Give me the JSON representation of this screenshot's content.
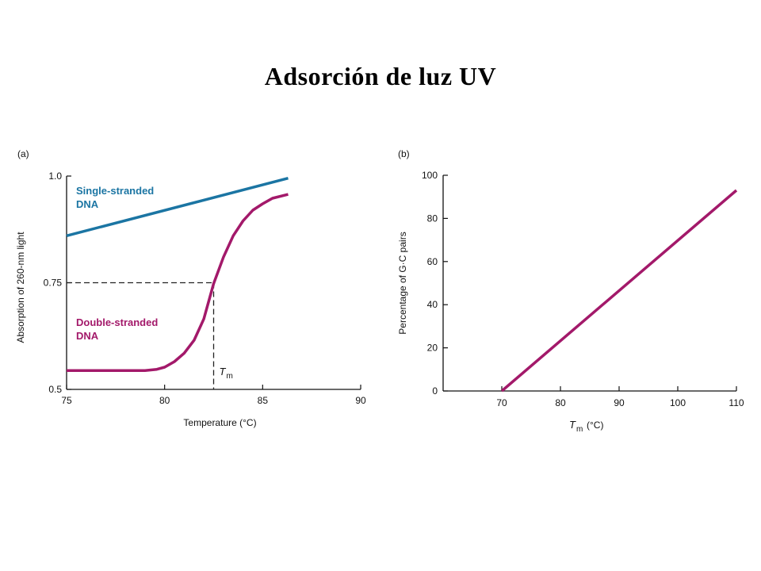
{
  "page": {
    "title": "Adsorción de luz UV"
  },
  "colors": {
    "single_stranded": "#1b75a3",
    "double_stranded": "#a3196a",
    "axis": "#111111"
  },
  "chart_data": [
    {
      "type": "line",
      "panel_label": "(a)",
      "xlabel": "Temperature (°C)",
      "ylabel": "Absorption of 260-nm light",
      "xlim": [
        75,
        90
      ],
      "ylim": [
        0.5,
        1.0
      ],
      "x_ticks": [
        75,
        80,
        85,
        90
      ],
      "y_ticks": [
        0.5,
        0.75,
        1.0
      ],
      "x_tick_labels": [
        "75",
        "80",
        "85",
        "90"
      ],
      "y_tick_labels": [
        "0.5",
        "0.75",
        "1.0"
      ],
      "grid": false,
      "series": [
        {
          "name_lines": [
            "Single-stranded",
            "DNA"
          ],
          "color_key": "single_stranded",
          "points": [
            [
              75,
              0.86
            ],
            [
              86.3,
              0.995
            ]
          ]
        },
        {
          "name_lines": [
            "Double-stranded",
            "DNA"
          ],
          "color_key": "double_stranded",
          "points": [
            [
              75,
              0.544
            ],
            [
              79.0,
              0.544
            ],
            [
              79.6,
              0.547
            ],
            [
              80.0,
              0.552
            ],
            [
              80.5,
              0.565
            ],
            [
              81.0,
              0.585
            ],
            [
              81.5,
              0.615
            ],
            [
              82.0,
              0.665
            ],
            [
              82.5,
              0.748
            ],
            [
              83.0,
              0.81
            ],
            [
              83.5,
              0.86
            ],
            [
              84.0,
              0.895
            ],
            [
              84.5,
              0.92
            ],
            [
              85.0,
              0.935
            ],
            [
              85.5,
              0.948
            ],
            [
              86.3,
              0.957
            ]
          ]
        }
      ],
      "annotations": {
        "tm_x": 82.5,
        "tm_y": 0.75,
        "tm_symbol": "T",
        "tm_subscript": "m"
      }
    },
    {
      "type": "line",
      "panel_label": "(b)",
      "xlabel_symbol": "T",
      "xlabel_subscript": "m",
      "xlabel_unit": "(°C)",
      "ylabel": "Percentage of G·C pairs",
      "xlim": [
        60,
        110
      ],
      "ylim": [
        0,
        100
      ],
      "x_ticks": [
        70,
        80,
        90,
        100,
        110
      ],
      "y_ticks": [
        0,
        20,
        40,
        60,
        80,
        100
      ],
      "x_tick_labels": [
        "70",
        "80",
        "90",
        "100",
        "110"
      ],
      "y_tick_labels": [
        "0",
        "20",
        "40",
        "60",
        "80",
        "100"
      ],
      "grid": false,
      "series": [
        {
          "color_key": "double_stranded",
          "points": [
            [
              70,
              0
            ],
            [
              110,
              93
            ]
          ]
        }
      ]
    }
  ]
}
